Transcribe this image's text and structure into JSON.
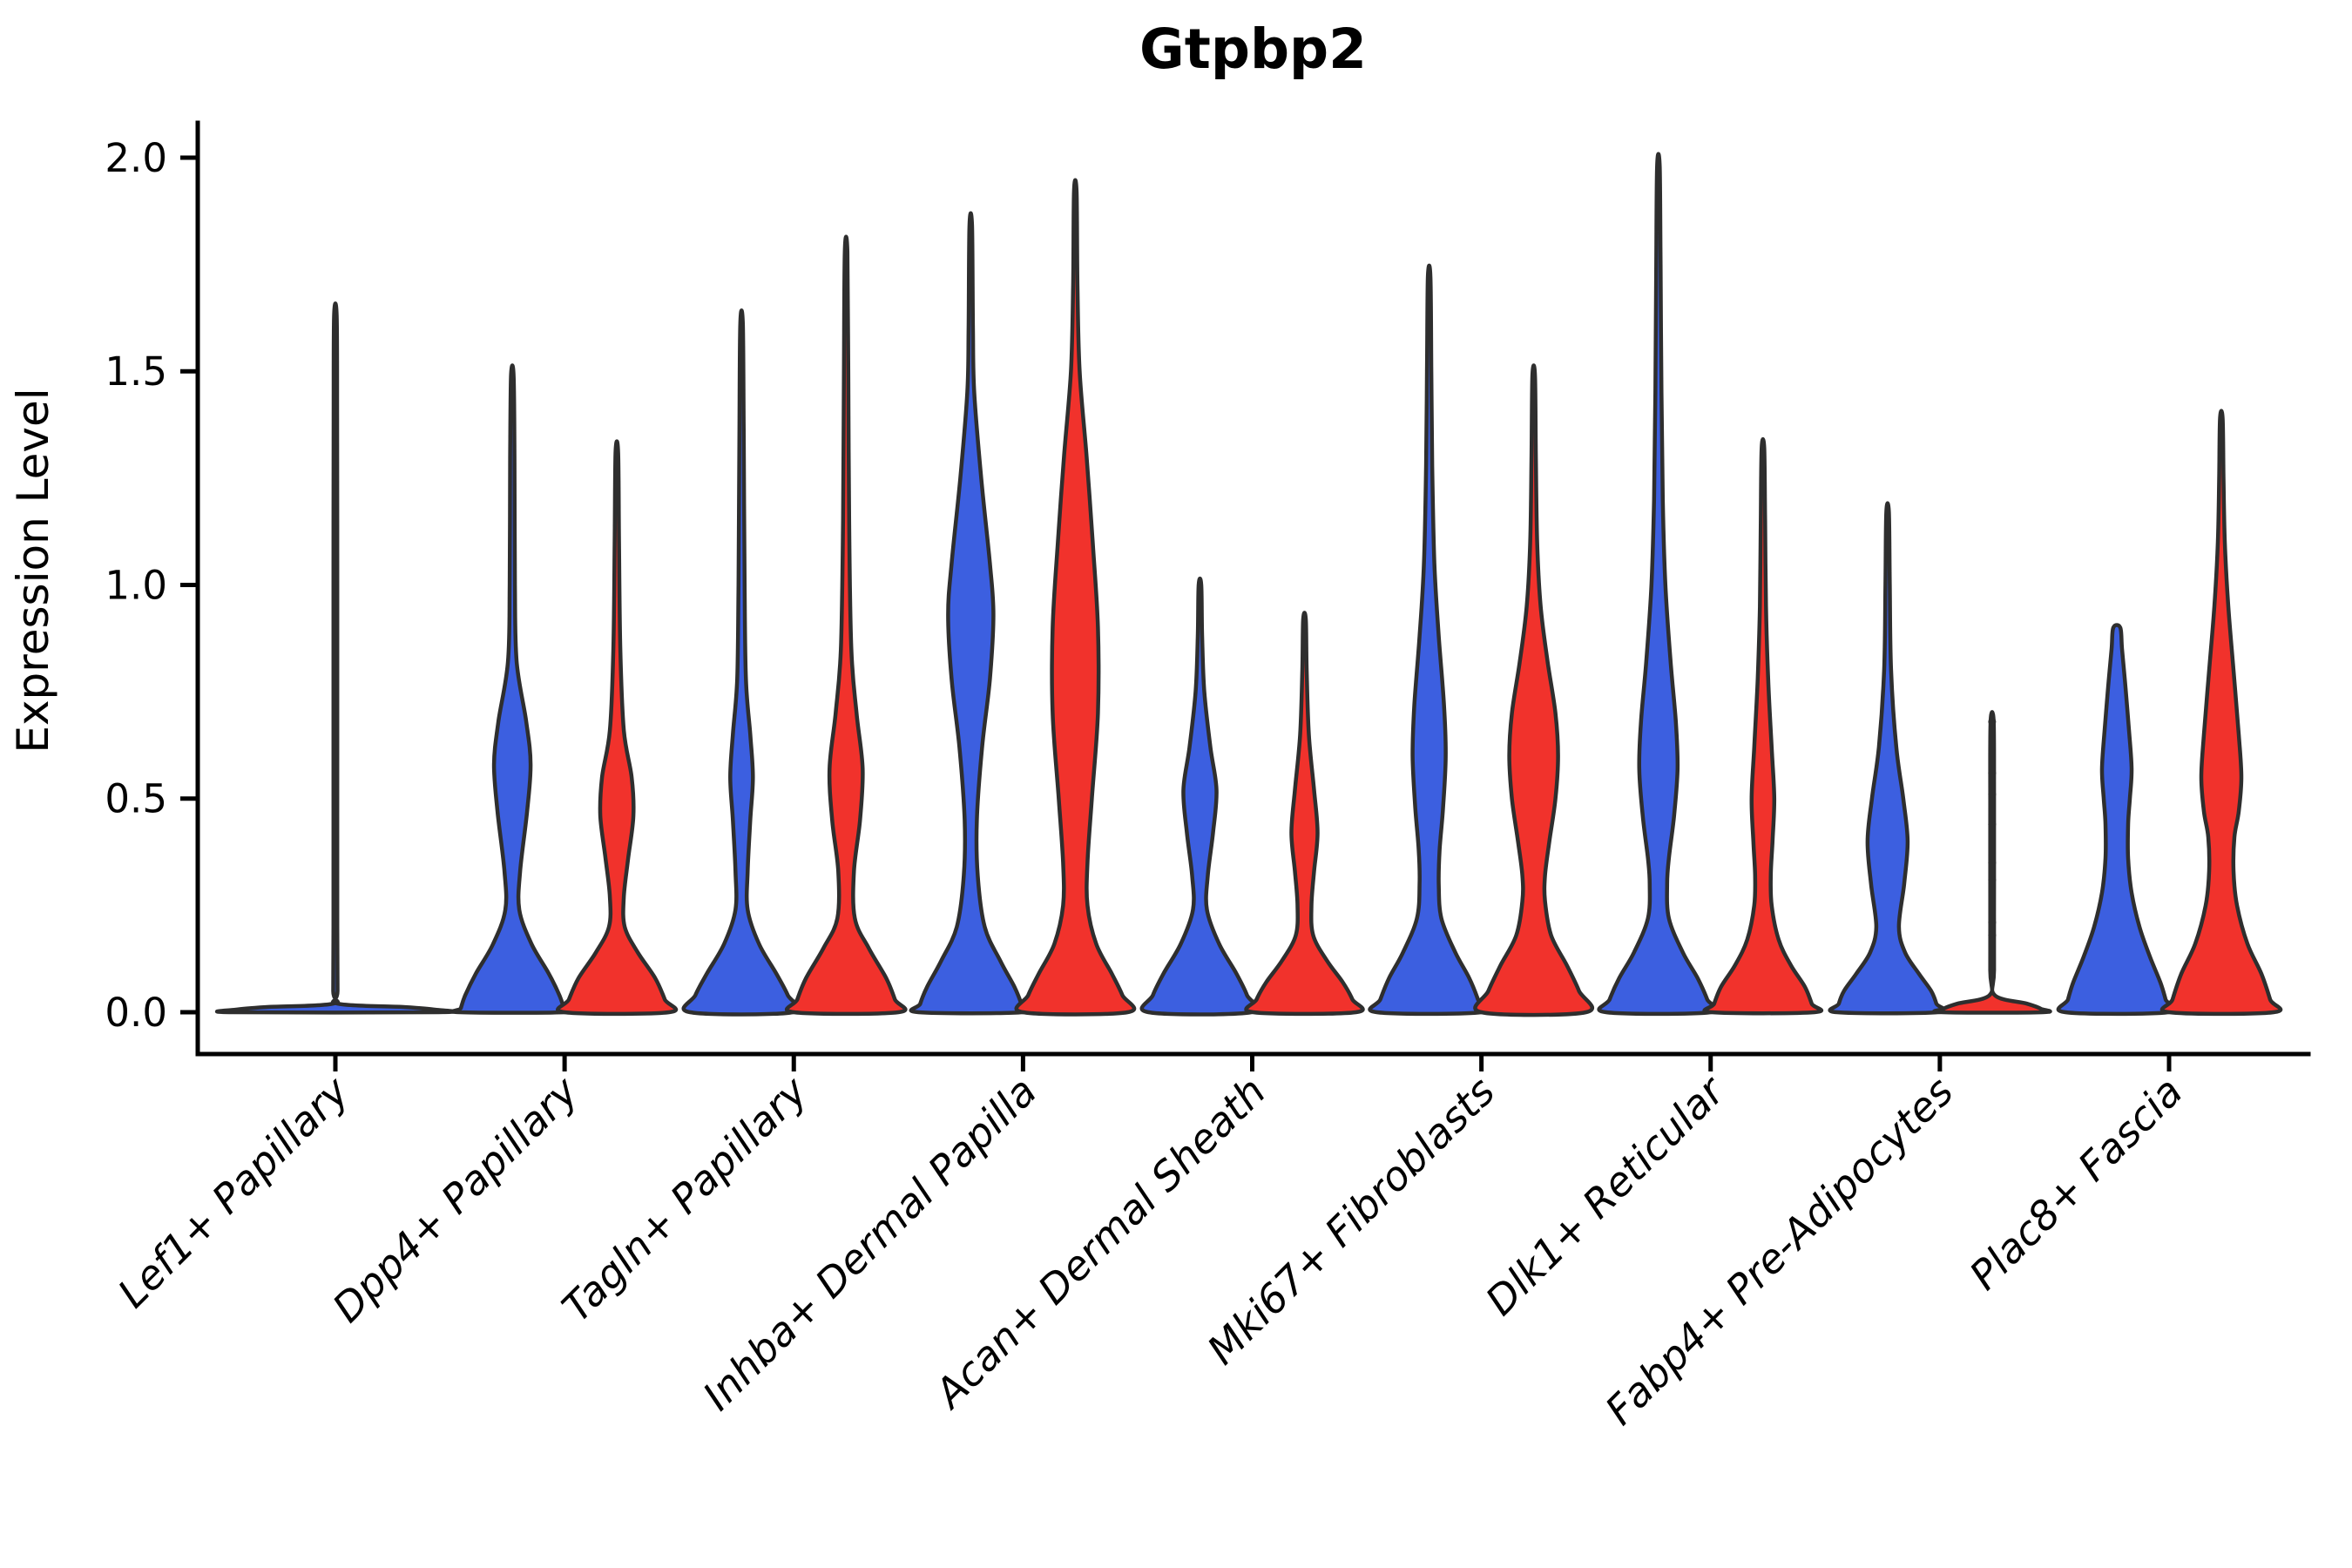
{
  "title": "Gtpbp2",
  "ylabel": "Expression Level",
  "colors": {
    "blue": "#3C5FE0",
    "red": "#F1322C",
    "outline": "#2E2E2E",
    "axis": "#000000"
  },
  "chart_data": {
    "type": "violin",
    "title": "Gtpbp2",
    "xlabel": "",
    "ylabel": "Expression Level",
    "ylim": [
      0,
      2.08
    ],
    "grid": "off",
    "legend": "none",
    "ytick_values": [
      0,
      0.5,
      1.0,
      1.5,
      2.0
    ],
    "ytick_labels": [
      "0.0",
      "0.5",
      "1.0",
      "1.5",
      "2.0"
    ],
    "categories": [
      "Lef1+ Papillary",
      "Dpp4+ Papillary",
      "Tagln+ Papillary",
      "Inhba+ Dermal Papilla",
      "Acan+ Dermal Sheath",
      "Mki67+ Fibroblasts",
      "Dlk1+ Reticular",
      "Fabp4+ Pre-Adipocytes",
      "Plac8+ Fascia"
    ],
    "groups": [
      {
        "name": "group-1",
        "color_key": "blue",
        "side": "left"
      },
      {
        "name": "group-2",
        "color_key": "red",
        "side": "right"
      }
    ],
    "violins": [
      {
        "category": "Lef1+ Papillary",
        "cat_index": 0,
        "group": "single",
        "color_key": "blue",
        "max": 1.63,
        "profile": [
          [
            1.63,
            1.5
          ],
          [
            1.4,
            2.0
          ],
          [
            1.0,
            2.2
          ],
          [
            0.6,
            2.2
          ],
          [
            0.2,
            2.2
          ],
          [
            0.05,
            2.5
          ],
          [
            0.02,
            3
          ],
          [
            0.012,
            80
          ],
          [
            0.006,
            115
          ],
          [
            0,
            118
          ]
        ]
      },
      {
        "category": "Dpp4+ Papillary",
        "cat_index": 1,
        "group": "left",
        "color_key": "blue",
        "max": 1.49,
        "profile": [
          [
            1.49,
            1.5
          ],
          [
            1.3,
            2.5
          ],
          [
            1.0,
            3
          ],
          [
            0.82,
            5
          ],
          [
            0.68,
            16
          ],
          [
            0.58,
            21
          ],
          [
            0.47,
            17
          ],
          [
            0.33,
            9
          ],
          [
            0.24,
            8
          ],
          [
            0.16,
            22
          ],
          [
            0.09,
            42
          ],
          [
            0.04,
            54
          ],
          [
            0.01,
            59
          ],
          [
            0,
            60
          ]
        ]
      },
      {
        "category": "Dpp4+ Papillary",
        "cat_index": 1,
        "group": "right",
        "color_key": "red",
        "max": 1.31,
        "profile": [
          [
            1.31,
            1.5
          ],
          [
            1.1,
            2.5
          ],
          [
            0.85,
            4
          ],
          [
            0.66,
            8
          ],
          [
            0.55,
            17
          ],
          [
            0.46,
            19
          ],
          [
            0.36,
            13
          ],
          [
            0.27,
            8
          ],
          [
            0.2,
            9
          ],
          [
            0.14,
            24
          ],
          [
            0.08,
            44
          ],
          [
            0.03,
            55
          ],
          [
            0,
            60
          ]
        ]
      },
      {
        "category": "Tagln+ Papillary",
        "cat_index": 2,
        "group": "left",
        "color_key": "blue",
        "max": 1.61,
        "profile": [
          [
            1.61,
            1.5
          ],
          [
            1.35,
            2.5
          ],
          [
            1.0,
            3.5
          ],
          [
            0.78,
            5
          ],
          [
            0.65,
            10
          ],
          [
            0.55,
            13
          ],
          [
            0.45,
            10
          ],
          [
            0.33,
            7
          ],
          [
            0.24,
            7
          ],
          [
            0.16,
            20
          ],
          [
            0.09,
            40
          ],
          [
            0.04,
            53
          ],
          [
            0,
            59
          ]
        ]
      },
      {
        "category": "Tagln+ Papillary",
        "cat_index": 2,
        "group": "right",
        "color_key": "red",
        "max": 1.78,
        "profile": [
          [
            1.78,
            1.5
          ],
          [
            1.5,
            2.5
          ],
          [
            1.15,
            3.5
          ],
          [
            0.85,
            6
          ],
          [
            0.7,
            12
          ],
          [
            0.57,
            19
          ],
          [
            0.45,
            16
          ],
          [
            0.33,
            9
          ],
          [
            0.22,
            10
          ],
          [
            0.15,
            26
          ],
          [
            0.08,
            46
          ],
          [
            0.03,
            56
          ],
          [
            0,
            60
          ]
        ]
      },
      {
        "category": "Inhba+ Dermal Papilla",
        "cat_index": 3,
        "group": "left",
        "color_key": "blue",
        "max": 1.84,
        "profile": [
          [
            1.84,
            1.5
          ],
          [
            1.6,
            2.5
          ],
          [
            1.45,
            4
          ],
          [
            1.25,
            12
          ],
          [
            1.05,
            22
          ],
          [
            0.93,
            26
          ],
          [
            0.78,
            22
          ],
          [
            0.62,
            13
          ],
          [
            0.45,
            7
          ],
          [
            0.32,
            8
          ],
          [
            0.2,
            16
          ],
          [
            0.12,
            34
          ],
          [
            0.06,
            50
          ],
          [
            0.02,
            58
          ],
          [
            0,
            60
          ]
        ]
      },
      {
        "category": "Inhba+ Dermal Papilla",
        "cat_index": 3,
        "group": "right",
        "color_key": "red",
        "max": 1.92,
        "profile": [
          [
            1.92,
            1.5
          ],
          [
            1.7,
            2.5
          ],
          [
            1.5,
            5
          ],
          [
            1.3,
            13
          ],
          [
            1.1,
            20
          ],
          [
            0.9,
            26
          ],
          [
            0.7,
            26
          ],
          [
            0.5,
            19
          ],
          [
            0.35,
            14
          ],
          [
            0.25,
            14
          ],
          [
            0.16,
            24
          ],
          [
            0.09,
            42
          ],
          [
            0.04,
            54
          ],
          [
            0,
            60
          ]
        ]
      },
      {
        "category": "Acan+ Dermal Sheath",
        "cat_index": 4,
        "group": "left",
        "color_key": "blue",
        "max": 1.0,
        "profile": [
          [
            1.0,
            1.5
          ],
          [
            0.88,
            2.5
          ],
          [
            0.75,
            5
          ],
          [
            0.62,
            12
          ],
          [
            0.52,
            19
          ],
          [
            0.42,
            15
          ],
          [
            0.32,
            9
          ],
          [
            0.24,
            8
          ],
          [
            0.16,
            22
          ],
          [
            0.09,
            42
          ],
          [
            0.04,
            54
          ],
          [
            0,
            59
          ]
        ]
      },
      {
        "category": "Acan+ Dermal Sheath",
        "cat_index": 4,
        "group": "right",
        "color_key": "red",
        "max": 0.92,
        "profile": [
          [
            0.92,
            1.5
          ],
          [
            0.8,
            2.5
          ],
          [
            0.65,
            5
          ],
          [
            0.52,
            11
          ],
          [
            0.42,
            15
          ],
          [
            0.33,
            11
          ],
          [
            0.25,
            8
          ],
          [
            0.18,
            10
          ],
          [
            0.12,
            26
          ],
          [
            0.07,
            44
          ],
          [
            0.03,
            55
          ],
          [
            0,
            59
          ]
        ]
      },
      {
        "category": "Mki67+ Fibroblasts",
        "cat_index": 5,
        "group": "left",
        "color_key": "blue",
        "max": 1.72,
        "profile": [
          [
            1.72,
            1.5
          ],
          [
            1.5,
            2.5
          ],
          [
            1.28,
            3.5
          ],
          [
            1.05,
            6
          ],
          [
            0.88,
            11
          ],
          [
            0.72,
            17
          ],
          [
            0.6,
            19
          ],
          [
            0.48,
            16
          ],
          [
            0.38,
            12
          ],
          [
            0.3,
            11
          ],
          [
            0.22,
            14
          ],
          [
            0.14,
            30
          ],
          [
            0.08,
            46
          ],
          [
            0.03,
            56
          ],
          [
            0,
            60
          ]
        ]
      },
      {
        "category": "Mki67+ Fibroblasts",
        "cat_index": 5,
        "group": "right",
        "color_key": "red",
        "max": 1.49,
        "profile": [
          [
            1.49,
            1.5
          ],
          [
            1.3,
            2.5
          ],
          [
            1.1,
            4
          ],
          [
            0.95,
            8
          ],
          [
            0.82,
            16
          ],
          [
            0.7,
            25
          ],
          [
            0.6,
            28
          ],
          [
            0.5,
            25
          ],
          [
            0.4,
            18
          ],
          [
            0.32,
            13
          ],
          [
            0.26,
            13
          ],
          [
            0.18,
            20
          ],
          [
            0.11,
            38
          ],
          [
            0.05,
            52
          ],
          [
            0,
            60
          ]
        ]
      },
      {
        "category": "Dlk1+ Reticular",
        "cat_index": 6,
        "group": "left",
        "color_key": "blue",
        "max": 1.98,
        "profile": [
          [
            1.98,
            1.5
          ],
          [
            1.75,
            2.5
          ],
          [
            1.45,
            3.5
          ],
          [
            1.2,
            5
          ],
          [
            1.0,
            8
          ],
          [
            0.82,
            14
          ],
          [
            0.68,
            20
          ],
          [
            0.57,
            22
          ],
          [
            0.46,
            18
          ],
          [
            0.36,
            12
          ],
          [
            0.3,
            10
          ],
          [
            0.22,
            12
          ],
          [
            0.14,
            28
          ],
          [
            0.08,
            45
          ],
          [
            0.03,
            56
          ],
          [
            0,
            60
          ]
        ]
      },
      {
        "category": "Dlk1+ Reticular",
        "cat_index": 6,
        "group": "right",
        "color_key": "red",
        "max": 1.32,
        "profile": [
          [
            1.32,
            1.5
          ],
          [
            1.15,
            2.5
          ],
          [
            0.95,
            3.5
          ],
          [
            0.78,
            6
          ],
          [
            0.62,
            10
          ],
          [
            0.5,
            13
          ],
          [
            0.4,
            11
          ],
          [
            0.32,
            9
          ],
          [
            0.25,
            10
          ],
          [
            0.17,
            18
          ],
          [
            0.11,
            32
          ],
          [
            0.06,
            48
          ],
          [
            0.02,
            56
          ],
          [
            0,
            59
          ]
        ]
      },
      {
        "category": "Fabp4+ Pre-Adipocytes",
        "cat_index": 7,
        "group": "left",
        "color_key": "blue",
        "max": 1.17,
        "profile": [
          [
            1.17,
            1.5
          ],
          [
            1.0,
            2.5
          ],
          [
            0.8,
            4
          ],
          [
            0.62,
            10
          ],
          [
            0.5,
            18
          ],
          [
            0.4,
            23
          ],
          [
            0.3,
            19
          ],
          [
            0.2,
            13
          ],
          [
            0.14,
            20
          ],
          [
            0.09,
            36
          ],
          [
            0.05,
            50
          ],
          [
            0.02,
            56
          ],
          [
            0,
            58
          ]
        ]
      },
      {
        "category": "Fabp4+ Pre-Adipocytes",
        "cat_index": 7,
        "group": "right",
        "color_key": "red",
        "max": 0.68,
        "profile": [
          [
            0.68,
            1.8
          ],
          [
            0.5,
            2.2
          ],
          [
            0.3,
            2.2
          ],
          [
            0.1,
            2.2
          ],
          [
            0.04,
            3
          ],
          [
            0.02,
            40
          ],
          [
            0.008,
            56
          ],
          [
            0,
            58
          ]
        ]
      },
      {
        "category": "Plac8+ Fascia",
        "cat_index": 8,
        "group": "left",
        "color_key": "blue",
        "max": 0.9,
        "profile": [
          [
            0.9,
            4
          ],
          [
            0.85,
            6
          ],
          [
            0.76,
            10
          ],
          [
            0.66,
            14
          ],
          [
            0.57,
            17
          ],
          [
            0.5,
            15
          ],
          [
            0.44,
            13
          ],
          [
            0.36,
            13
          ],
          [
            0.28,
            17
          ],
          [
            0.2,
            26
          ],
          [
            0.13,
            38
          ],
          [
            0.07,
            50
          ],
          [
            0.03,
            56
          ],
          [
            0,
            59
          ]
        ]
      },
      {
        "category": "Plac8+ Fascia",
        "cat_index": 8,
        "group": "right",
        "color_key": "red",
        "max": 1.39,
        "profile": [
          [
            1.39,
            1.5
          ],
          [
            1.25,
            2.5
          ],
          [
            1.1,
            4
          ],
          [
            0.95,
            8
          ],
          [
            0.8,
            14
          ],
          [
            0.65,
            20
          ],
          [
            0.55,
            23
          ],
          [
            0.47,
            20
          ],
          [
            0.41,
            15
          ],
          [
            0.33,
            14
          ],
          [
            0.25,
            18
          ],
          [
            0.16,
            30
          ],
          [
            0.09,
            46
          ],
          [
            0.03,
            56
          ],
          [
            0,
            60
          ]
        ]
      }
    ],
    "jitter_points": [
      {
        "category": "Fabp4+ Pre-Adipocytes",
        "cat_index": 7,
        "group": "right",
        "values": [
          0.68,
          0.56,
          0.51,
          0.44,
          0.35,
          0.31,
          0.21,
          0.18
        ]
      }
    ]
  }
}
